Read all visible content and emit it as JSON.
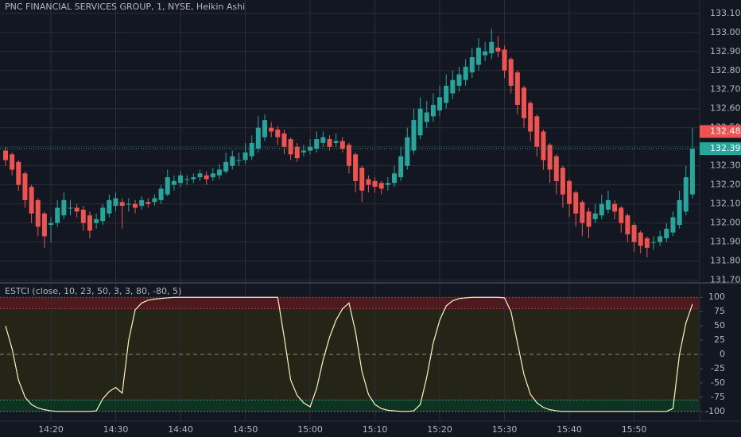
{
  "chart_data": [
    {
      "type": "candlestick",
      "title": "PNC FINANCIAL SERVICES GROUP, 1, NYSE, Heikin Ashi",
      "up_color": "#26a69a",
      "down_color": "#ef5350",
      "grid": true,
      "x": [
        "14:13",
        "14:14",
        "14:15",
        "14:16",
        "14:17",
        "14:18",
        "14:19",
        "14:20",
        "14:21",
        "14:22",
        "14:23",
        "14:24",
        "14:25",
        "14:26",
        "14:27",
        "14:28",
        "14:29",
        "14:30",
        "14:31",
        "14:32",
        "14:33",
        "14:34",
        "14:35",
        "14:36",
        "14:37",
        "14:38",
        "14:39",
        "14:40",
        "14:41",
        "14:42",
        "14:43",
        "14:44",
        "14:45",
        "14:46",
        "14:47",
        "14:48",
        "14:49",
        "14:50",
        "14:51",
        "14:52",
        "14:53",
        "14:54",
        "14:55",
        "14:56",
        "14:57",
        "14:58",
        "14:59",
        "15:00",
        "15:01",
        "15:02",
        "15:03",
        "15:04",
        "15:05",
        "15:06",
        "15:07",
        "15:08",
        "15:09",
        "15:10",
        "15:11",
        "15:12",
        "15:13",
        "15:14",
        "15:15",
        "15:16",
        "15:17",
        "15:18",
        "15:19",
        "15:20",
        "15:21",
        "15:22",
        "15:23",
        "15:24",
        "15:25",
        "15:26",
        "15:27",
        "15:28",
        "15:29",
        "15:30",
        "15:31",
        "15:32",
        "15:33",
        "15:34",
        "15:35",
        "15:36",
        "15:37",
        "15:38",
        "15:39",
        "15:40",
        "15:41",
        "15:42",
        "15:43",
        "15:44",
        "15:45",
        "15:46",
        "15:47",
        "15:48",
        "15:49",
        "15:50",
        "15:51",
        "15:52",
        "15:53",
        "15:54",
        "15:55",
        "15:56",
        "15:57",
        "15:58",
        "15:59"
      ],
      "open": [
        132.38,
        132.36,
        132.32,
        132.26,
        132.19,
        132.12,
        132.05,
        131.99,
        132.0,
        132.04,
        132.08,
        132.08,
        132.07,
        132.04,
        132.0,
        132.01,
        132.05,
        132.09,
        132.11,
        132.1,
        132.1,
        132.09,
        132.11,
        132.11,
        132.12,
        132.15,
        132.2,
        132.21,
        132.23,
        132.23,
        132.24,
        132.25,
        132.24,
        132.25,
        132.27,
        132.3,
        132.33,
        132.33,
        132.35,
        132.39,
        132.45,
        132.5,
        132.49,
        132.47,
        132.44,
        132.4,
        132.37,
        132.38,
        132.39,
        132.42,
        132.44,
        132.42,
        132.43,
        132.41,
        132.36,
        132.29,
        132.23,
        132.22,
        132.21,
        132.2,
        132.21,
        132.24,
        132.3,
        132.38,
        132.46,
        132.53,
        132.56,
        132.59,
        132.63,
        132.68,
        132.72,
        132.75,
        132.79,
        132.83,
        132.88,
        132.89,
        132.92,
        132.91,
        132.86,
        132.79,
        132.71,
        132.63,
        132.56,
        132.48,
        132.41,
        132.35,
        132.29,
        132.22,
        132.16,
        132.11,
        132.06,
        132.02,
        132.04,
        132.07,
        132.1,
        132.08,
        132.04,
        131.99,
        131.95,
        131.92,
        131.9,
        131.9,
        131.92,
        131.95,
        131.99,
        132.06,
        132.15
      ],
      "high": [
        132.4,
        132.37,
        132.33,
        132.27,
        132.2,
        132.13,
        132.06,
        132.03,
        132.12,
        132.16,
        132.12,
        132.1,
        132.09,
        132.06,
        132.05,
        132.1,
        132.15,
        132.16,
        132.13,
        132.13,
        132.12,
        132.14,
        132.13,
        132.15,
        132.2,
        132.28,
        132.25,
        132.27,
        132.25,
        132.26,
        132.28,
        132.27,
        132.29,
        132.31,
        132.37,
        132.38,
        132.37,
        132.42,
        132.46,
        132.56,
        132.57,
        132.53,
        132.51,
        132.49,
        132.45,
        132.42,
        132.41,
        132.44,
        132.48,
        132.48,
        132.46,
        132.47,
        132.45,
        132.42,
        132.37,
        132.3,
        132.25,
        132.24,
        132.22,
        132.24,
        132.3,
        132.4,
        132.5,
        132.6,
        132.66,
        132.64,
        132.68,
        132.72,
        132.78,
        132.8,
        132.82,
        132.86,
        132.92,
        132.97,
        132.95,
        133.02,
        132.98,
        132.93,
        132.87,
        132.8,
        132.72,
        132.64,
        132.57,
        132.49,
        132.42,
        132.36,
        132.3,
        132.23,
        132.17,
        132.12,
        132.08,
        132.1,
        132.15,
        132.17,
        132.12,
        132.09,
        132.05,
        132.0,
        131.96,
        131.93,
        131.93,
        131.96,
        132.0,
        132.06,
        132.17,
        132.3,
        132.5
      ],
      "low": [
        132.3,
        132.25,
        132.17,
        132.08,
        132.0,
        131.93,
        131.87,
        131.9,
        131.98,
        132.02,
        132.04,
        132.03,
        131.96,
        131.92,
        131.97,
        131.99,
        132.03,
        132.06,
        131.97,
        132.06,
        132.05,
        132.07,
        132.08,
        132.09,
        132.1,
        132.14,
        132.17,
        132.19,
        132.2,
        132.21,
        132.22,
        132.2,
        132.22,
        132.23,
        132.26,
        132.28,
        132.3,
        132.31,
        132.33,
        132.37,
        132.43,
        132.45,
        132.41,
        132.36,
        132.33,
        132.32,
        132.35,
        132.36,
        132.37,
        132.4,
        132.38,
        132.4,
        132.37,
        132.26,
        132.16,
        132.11,
        132.16,
        132.16,
        132.15,
        132.17,
        132.19,
        132.22,
        132.28,
        132.36,
        132.44,
        132.5,
        132.53,
        132.56,
        132.6,
        132.65,
        132.69,
        132.72,
        132.76,
        132.8,
        132.85,
        132.86,
        132.87,
        132.76,
        132.68,
        132.57,
        132.5,
        132.43,
        132.35,
        132.28,
        132.21,
        132.15,
        132.08,
        132.03,
        131.98,
        131.93,
        131.92,
        132.0,
        132.02,
        132.05,
        132.02,
        131.95,
        131.9,
        131.85,
        131.84,
        131.82,
        131.86,
        131.88,
        131.9,
        131.93,
        131.97,
        132.04,
        132.13
      ],
      "close": [
        132.33,
        132.28,
        132.2,
        132.12,
        132.05,
        131.98,
        131.93,
        132.0,
        132.08,
        132.12,
        132.08,
        132.06,
        132.0,
        131.96,
        132.02,
        132.08,
        132.12,
        132.13,
        132.09,
        132.1,
        132.08,
        132.12,
        132.1,
        132.13,
        132.18,
        132.24,
        132.22,
        132.25,
        132.23,
        132.24,
        132.26,
        132.23,
        132.26,
        132.28,
        132.32,
        132.35,
        132.33,
        132.37,
        132.42,
        132.5,
        132.54,
        132.48,
        132.45,
        132.4,
        132.36,
        132.34,
        132.38,
        132.4,
        132.44,
        132.45,
        132.4,
        132.43,
        132.39,
        132.3,
        132.22,
        132.17,
        132.2,
        132.19,
        132.18,
        132.21,
        132.26,
        132.35,
        132.45,
        132.54,
        132.6,
        132.58,
        132.62,
        132.66,
        132.72,
        132.75,
        132.78,
        132.82,
        132.87,
        132.92,
        132.9,
        132.95,
        132.9,
        132.8,
        132.72,
        132.62,
        132.55,
        132.48,
        132.4,
        132.33,
        132.28,
        132.22,
        132.15,
        132.1,
        132.05,
        132.0,
        131.98,
        132.05,
        132.1,
        132.12,
        132.06,
        132.0,
        131.94,
        131.9,
        131.88,
        131.87,
        131.9,
        131.93,
        131.97,
        132.03,
        132.12,
        132.24,
        132.39
      ],
      "ylim": [
        131.69,
        133.17
      ],
      "yticks": [
        {
          "value": 133.1,
          "label": "133.10"
        },
        {
          "value": 133.0,
          "label": "133.00"
        },
        {
          "value": 132.9,
          "label": "132.90"
        },
        {
          "value": 132.8,
          "label": "132.80"
        },
        {
          "value": 132.7,
          "label": "132.70"
        },
        {
          "value": 132.6,
          "label": "132.60"
        },
        {
          "value": 132.5,
          "label": "132.50"
        },
        {
          "value": 132.4,
          "label": "132.40"
        },
        {
          "value": 132.3,
          "label": "132.30"
        },
        {
          "value": 132.2,
          "label": "132.20"
        },
        {
          "value": 132.1,
          "label": "132.10"
        },
        {
          "value": 132.0,
          "label": "132.00"
        },
        {
          "value": 131.9,
          "label": "131.90"
        },
        {
          "value": 131.8,
          "label": "131.80"
        },
        {
          "value": 131.7,
          "label": "131.70"
        }
      ],
      "xticks": [
        "14:20",
        "14:30",
        "14:40",
        "14:50",
        "15:00",
        "15:10",
        "15:20",
        "15:30",
        "15:40",
        "15:50"
      ],
      "price_tags": [
        {
          "value": 132.48,
          "label": "132.48",
          "color": "#ef5350"
        },
        {
          "value": 132.39,
          "label": "132.39",
          "color": "#26a69a"
        }
      ]
    },
    {
      "type": "line",
      "title": "ESTCI (close, 10, 23, 50, 3, 3, 80, -80, 5)",
      "color": "#fff3c4",
      "values": [
        50,
        10,
        -45,
        -75,
        -88,
        -94,
        -97,
        -99,
        -100,
        -100,
        -100,
        -100,
        -100,
        -100,
        -99,
        -78,
        -65,
        -58,
        -68,
        25,
        78,
        90,
        95,
        97,
        98,
        99,
        100,
        100,
        100,
        100,
        100,
        100,
        100,
        100,
        100,
        100,
        100,
        100,
        100,
        100,
        100,
        100,
        100,
        30,
        -45,
        -72,
        -85,
        -92,
        -60,
        -10,
        30,
        60,
        80,
        90,
        40,
        -30,
        -70,
        -88,
        -95,
        -98,
        -99,
        -100,
        -100,
        -99,
        -88,
        -40,
        20,
        60,
        85,
        94,
        98,
        99,
        100,
        100,
        100,
        100,
        100,
        99,
        75,
        20,
        -35,
        -70,
        -85,
        -93,
        -97,
        -99,
        -100,
        -100,
        -100,
        -100,
        -100,
        -100,
        -100,
        -100,
        -100,
        -100,
        -100,
        -100,
        -100,
        -100,
        -100,
        -100,
        -100,
        -95,
        0,
        55,
        88
      ],
      "ylim": [
        -117,
        124
      ],
      "yticks": [
        100,
        75,
        50,
        25,
        0,
        -25,
        -50,
        -75,
        -100
      ],
      "upper_zone": [
        80,
        100
      ],
      "upper_color": "#4d1a20",
      "middle_zone": [
        -80,
        80
      ],
      "middle_color": "#242517",
      "lower_zone": [
        -100,
        -80
      ],
      "lower_color": "#0e3322",
      "mid_line": 0
    }
  ]
}
